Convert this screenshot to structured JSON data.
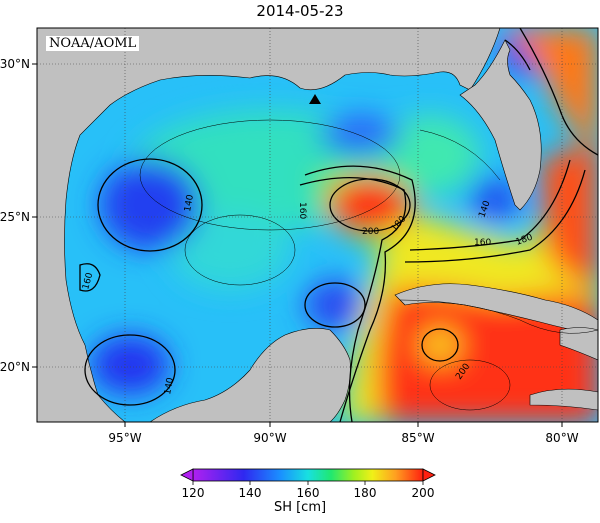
{
  "title": "2014-05-23",
  "attribution": "NOAA/AOML",
  "lat_ticks": [
    "30°N",
    "25°N",
    "20°N"
  ],
  "lon_ticks": [
    "95°W",
    "90°W",
    "85°W",
    "80°W"
  ],
  "contour_labels": [
    "140",
    "160",
    "180",
    "200"
  ],
  "colorbar": {
    "label": "SH [cm]",
    "ticks": [
      "120",
      "140",
      "160",
      "180",
      "200"
    ],
    "min": 120,
    "max": 200,
    "colors": [
      "#a020f0",
      "#3020f0",
      "#1a80ff",
      "#18e8e8",
      "#20e870",
      "#80f020",
      "#f0f018",
      "#ffa020",
      "#ff2010"
    ]
  },
  "colors": {
    "land": "#c0c0c0",
    "warm": "#ff2a14",
    "cool": "#3a5cf0"
  }
}
